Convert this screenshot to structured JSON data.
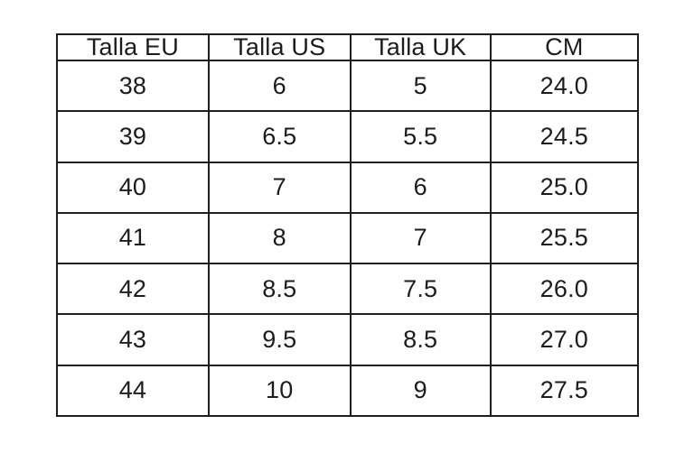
{
  "table": {
    "columns": [
      "Talla EU",
      "Talla US",
      "Talla UK",
      "CM"
    ],
    "rows": [
      [
        "38",
        "6",
        "5",
        "24.0"
      ],
      [
        "39",
        "6.5",
        "5.5",
        "24.5"
      ],
      [
        "40",
        "7",
        "6",
        "25.0"
      ],
      [
        "41",
        "8",
        "7",
        "25.5"
      ],
      [
        "42",
        "8.5",
        "7.5",
        "26.0"
      ],
      [
        "43",
        "9.5",
        "8.5",
        "27.0"
      ],
      [
        "44",
        "10",
        "9",
        "27.5"
      ]
    ],
    "colors": {
      "border": "#1e1e1e",
      "text": "#1c1c1c",
      "background": "#ffffff"
    }
  },
  "chart_data": {
    "type": "table",
    "title": "",
    "columns": [
      "Talla EU",
      "Talla US",
      "Talla UK",
      "CM"
    ],
    "rows": [
      [
        38,
        6,
        5,
        24.0
      ],
      [
        39,
        6.5,
        5.5,
        24.5
      ],
      [
        40,
        7,
        6,
        25.0
      ],
      [
        41,
        8,
        7,
        25.5
      ],
      [
        42,
        8.5,
        7.5,
        26.0
      ],
      [
        43,
        9.5,
        8.5,
        27.0
      ],
      [
        44,
        10,
        9,
        27.5
      ]
    ]
  }
}
